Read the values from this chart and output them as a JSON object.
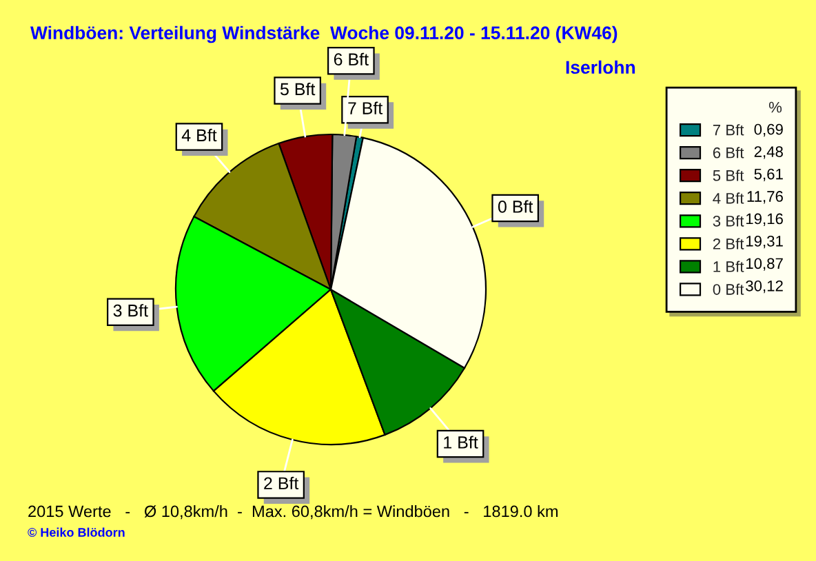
{
  "chart_data": {
    "type": "pie",
    "title": "Windböen: Verteilung Windstärke  Woche 09.11.20 - 15.11.20 (KW46)",
    "subtitle": "Iserlohn",
    "legend_title": "%",
    "categories": [
      "7 Bft",
      "6 Bft",
      "5 Bft",
      "4 Bft",
      "3 Bft",
      "2 Bft",
      "1 Bft",
      "0 Bft"
    ],
    "values": [
      0.69,
      2.48,
      5.61,
      11.76,
      19.16,
      19.31,
      10.87,
      30.12
    ],
    "value_labels": [
      "0,69",
      "2,48",
      "5,61",
      "11,76",
      "19,16",
      "19,31",
      "10,87",
      "30,12"
    ],
    "colors": [
      "#008080",
      "#808080",
      "#800000",
      "#808000",
      "#00ff00",
      "#ffff00",
      "#008000",
      "#fffff0"
    ],
    "legend": "top right",
    "annotations": [
      "2015 Werte   -   Ø 10,8km/h  -  Max. 60,8km/h = Windböen   -   1819.0 km",
      "© Heiko Blödorn"
    ]
  }
}
